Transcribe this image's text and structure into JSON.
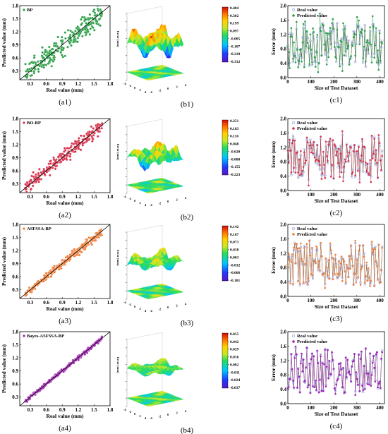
{
  "colors": {
    "bp": "#2ca048",
    "bo_bp": "#d9304a",
    "asfssa_bp": "#f07e3a",
    "bayes": "#a21fb6",
    "real_marker": "#7f90d8",
    "fit_line": "#000000"
  },
  "chart_data": [
    {
      "type": "scatter",
      "caption": "(a1)",
      "legend": "BP",
      "xlabel": "Real value (mm)",
      "ylabel": "Predicted value (mm)",
      "xticks": [
        "0.3",
        "0.6",
        "0.9",
        "1.2",
        "1.5",
        "1.8"
      ],
      "yticks": [
        "0.3",
        "0.6",
        "0.9",
        "1.2",
        "1.5",
        "1.8"
      ],
      "xlim": [
        0.1,
        1.8
      ],
      "ylim": [
        0.1,
        1.8
      ],
      "noise": 0.12
    },
    {
      "type": "surface3d",
      "caption": "(b1)",
      "zlabel": "Error (mm)",
      "colorbar": [
        "0.404",
        "0.302",
        "0.199",
        "0.097",
        "-0.005",
        "-0.107",
        "-0.210",
        "-0.312"
      ],
      "amplitude": 1.0
    },
    {
      "type": "line",
      "caption": "(c1)",
      "xlabel": "Size of Test Dataset",
      "ylabel": "Error (mm)",
      "legend": [
        "Real value",
        "Predicted value"
      ],
      "xticks": [
        "0",
        "100",
        "200",
        "300",
        "400"
      ],
      "yticks": [
        "0.0",
        "0.4",
        "0.8",
        "1.2",
        "1.6",
        "2.0"
      ],
      "xlim": [
        0,
        420
      ],
      "ylim": [
        0,
        2.0
      ],
      "noise": 0.15
    },
    {
      "type": "scatter",
      "caption": "(a2)",
      "legend": "BO-BP",
      "xlabel": "Real value (mm)",
      "ylabel": "Predicted value (mm)",
      "xticks": [
        "0.3",
        "0.6",
        "0.9",
        "1.2",
        "1.5",
        "1.8"
      ],
      "yticks": [
        "0.3",
        "0.6",
        "0.9",
        "1.2",
        "1.5",
        "1.8"
      ],
      "xlim": [
        0.1,
        1.8
      ],
      "ylim": [
        0.1,
        1.8
      ],
      "noise": 0.07
    },
    {
      "type": "surface3d",
      "caption": "(b2)",
      "zlabel": "Error (mm)",
      "colorbar": [
        "0.251",
        "0.183",
        "0.116",
        "0.048",
        "-0.020",
        "-0.088",
        "-0.155",
        "-0.223"
      ],
      "amplitude": 0.6
    },
    {
      "type": "line",
      "caption": "(c2)",
      "xlabel": "Size of Test Dataset",
      "ylabel": "Error (mm)",
      "legend": [
        "Real value",
        "Predicted value"
      ],
      "xticks": [
        "0",
        "100",
        "200",
        "300",
        "400"
      ],
      "yticks": [
        "0.0",
        "0.4",
        "0.8",
        "1.2",
        "1.6",
        "2.0"
      ],
      "xlim": [
        0,
        420
      ],
      "ylim": [
        0,
        2.0
      ],
      "noise": 0.09
    },
    {
      "type": "scatter",
      "caption": "(a3)",
      "legend": "ASFSSA-BP",
      "xlabel": "Real value (mm)",
      "ylabel": "Predicted value (mm)",
      "xticks": [
        "0.3",
        "0.6",
        "0.9",
        "1.2",
        "1.5",
        "1.8"
      ],
      "yticks": [
        "0.3",
        "0.6",
        "0.9",
        "1.2",
        "1.5",
        "1.8"
      ],
      "xlim": [
        0.1,
        1.8
      ],
      "ylim": [
        0.1,
        1.8
      ],
      "noise": 0.045
    },
    {
      "type": "surface3d",
      "caption": "(b3)",
      "zlabel": "Error (mm)",
      "colorbar": [
        "0.142",
        "0.107",
        "0.073",
        "0.038",
        "0.003",
        "-0.032",
        "-0.066",
        "-0.101"
      ],
      "amplitude": 0.35
    },
    {
      "type": "line",
      "caption": "(c3)",
      "xlabel": "Size of Test Dataset",
      "ylabel": "Error (mm)",
      "legend": [
        "Real value",
        "Predicted value"
      ],
      "xticks": [
        "0",
        "100",
        "200",
        "300",
        "400"
      ],
      "yticks": [
        "0.0",
        "0.4",
        "0.8",
        "1.2",
        "1.6",
        "2.0"
      ],
      "xlim": [
        0,
        420
      ],
      "ylim": [
        0,
        2.0
      ],
      "noise": 0.06
    },
    {
      "type": "scatter",
      "caption": "(a4)",
      "legend": "Bayes-ASFSSA-BP",
      "xlabel": "Real value (mm)",
      "ylabel": "Predicted value (mm)",
      "xticks": [
        "0.3",
        "0.6",
        "0.9",
        "1.2",
        "1.5",
        "1.8"
      ],
      "yticks": [
        "0.3",
        "0.6",
        "0.9",
        "1.2",
        "1.5",
        "1.8"
      ],
      "xlim": [
        0.1,
        1.8
      ],
      "ylim": [
        0.1,
        1.8
      ],
      "noise": 0.02
    },
    {
      "type": "surface3d",
      "caption": "(b4)",
      "zlabel": "Error (mm)",
      "colorbar": [
        "0.055",
        "0.042",
        "0.029",
        "0.016",
        "0.002",
        "-0.011",
        "-0.024",
        "-0.037"
      ],
      "amplitude": 0.15
    },
    {
      "type": "line",
      "caption": "(c4)",
      "xlabel": "Size of Test Dataset",
      "ylabel": "Error (mm)",
      "legend": [
        "Real value",
        "Predicted value"
      ],
      "xticks": [
        "0",
        "100",
        "200",
        "300",
        "400"
      ],
      "yticks": [
        "0.0",
        "0.4",
        "0.8",
        "1.2",
        "1.6",
        "2.0"
      ],
      "xlim": [
        0,
        420
      ],
      "ylim": [
        0,
        2.0
      ],
      "noise": 0.03
    }
  ]
}
